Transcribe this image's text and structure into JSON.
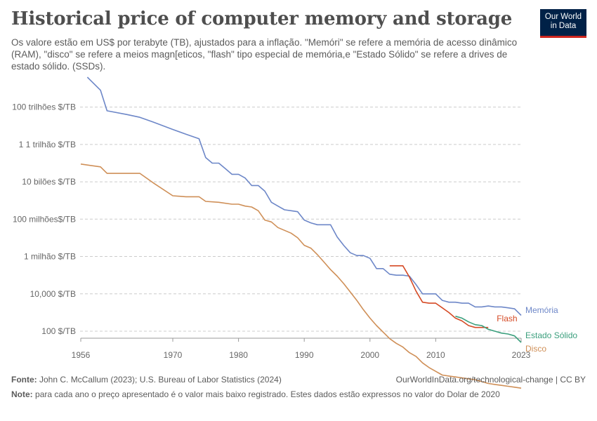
{
  "header": {
    "title": "Historical price of computer memory and storage",
    "subtitle": "Os valore estão em US$ por terabyte (TB), ajustados para a inflação. \"Memóri\" se refere a memória de acesso dinâmico (RAM), \"disco\" se refere a meios magn[eticos, \"flash\" tipo especial de memória,e \"Estado Sólido\" se refere a drives de estado sólido. (SSDs).",
    "logo_line1": "Our World",
    "logo_line2": "in Data"
  },
  "footer": {
    "source_label": "Fonte:",
    "source_text": "John C. McCallum (2023); U.S. Bureau of Labor Statistics (2024)",
    "url": "OurWorldInData.org/technological-change | CC BY",
    "note_label": "Note:",
    "note_text": "para cada ano o preço apresentado é o valor mais baixo registrado. Estes dados estão expressos no valor do Dolar de 2020"
  },
  "colors": {
    "memoria": "#6d87c8",
    "disco": "#cf8f57",
    "flash": "#d54a25",
    "estado_solido": "#3b9f7d",
    "grid": "#cccccc",
    "axis_text": "#666666"
  },
  "chart_data": {
    "type": "line",
    "title": "Historical price of computer memory and storage",
    "xlabel": "",
    "ylabel": "",
    "scale_y": "log",
    "xlim": [
      1956,
      2023
    ],
    "ylim_exponent": [
      1.3,
      15.3
    ],
    "grid": true,
    "legend": "inline-right",
    "x_ticks": [
      1956,
      1970,
      1980,
      1990,
      2000,
      2010,
      2023
    ],
    "y_ticks": [
      {
        "exp": 2,
        "label": "100 $/TB"
      },
      {
        "exp": 4,
        "label": "10,000 $/TB"
      },
      {
        "exp": 6,
        "label": "1 milhão $/TB"
      },
      {
        "exp": 8,
        "label": "100 milhões$/TB"
      },
      {
        "exp": 10,
        "label": "10 bilões $/TB"
      },
      {
        "exp": 12,
        "label": "1 1 trilhão $/TB"
      },
      {
        "exp": 14,
        "label": "100 trilhões $/TB"
      }
    ],
    "series": [
      {
        "name": "Memória",
        "key": "memoria",
        "points": [
          [
            1957,
            15.6
          ],
          [
            1959,
            14.9
          ],
          [
            1960,
            13.8
          ],
          [
            1963,
            13.6
          ],
          [
            1965,
            13.45
          ],
          [
            1967,
            13.2
          ],
          [
            1970,
            12.8
          ],
          [
            1972,
            12.55
          ],
          [
            1974,
            12.3
          ],
          [
            1975,
            11.3
          ],
          [
            1976,
            11.0
          ],
          [
            1977,
            11.0
          ],
          [
            1978,
            10.7
          ],
          [
            1979,
            10.4
          ],
          [
            1980,
            10.4
          ],
          [
            1981,
            10.2
          ],
          [
            1982,
            9.8
          ],
          [
            1983,
            9.8
          ],
          [
            1984,
            9.5
          ],
          [
            1985,
            8.9
          ],
          [
            1986,
            8.7
          ],
          [
            1987,
            8.5
          ],
          [
            1988,
            8.45
          ],
          [
            1989,
            8.4
          ],
          [
            1990,
            7.95
          ],
          [
            1991,
            7.8
          ],
          [
            1992,
            7.7
          ],
          [
            1993,
            7.7
          ],
          [
            1994,
            7.7
          ],
          [
            1995,
            7.05
          ],
          [
            1996,
            6.6
          ],
          [
            1997,
            6.2
          ],
          [
            1998,
            6.05
          ],
          [
            1999,
            6.05
          ],
          [
            2000,
            5.9
          ],
          [
            2001,
            5.35
          ],
          [
            2002,
            5.35
          ],
          [
            2003,
            5.05
          ],
          [
            2004,
            5.0
          ],
          [
            2005,
            5.0
          ],
          [
            2006,
            4.95
          ],
          [
            2007,
            4.5
          ],
          [
            2008,
            4.0
          ],
          [
            2009,
            4.0
          ],
          [
            2010,
            4.0
          ],
          [
            2011,
            3.65
          ],
          [
            2012,
            3.55
          ],
          [
            2013,
            3.55
          ],
          [
            2014,
            3.5
          ],
          [
            2015,
            3.5
          ],
          [
            2016,
            3.3
          ],
          [
            2017,
            3.3
          ],
          [
            2018,
            3.35
          ],
          [
            2019,
            3.3
          ],
          [
            2020,
            3.3
          ],
          [
            2021,
            3.25
          ],
          [
            2022,
            3.2
          ],
          [
            2023,
            2.85
          ]
        ]
      },
      {
        "name": "Disco",
        "key": "disco",
        "points": [
          [
            1956,
            10.95
          ],
          [
            1959,
            10.8
          ],
          [
            1960,
            10.45
          ],
          [
            1963,
            10.45
          ],
          [
            1965,
            10.45
          ],
          [
            1967,
            9.95
          ],
          [
            1970,
            9.25
          ],
          [
            1972,
            9.2
          ],
          [
            1974,
            9.2
          ],
          [
            1975,
            8.95
          ],
          [
            1977,
            8.9
          ],
          [
            1979,
            8.8
          ],
          [
            1980,
            8.8
          ],
          [
            1981,
            8.7
          ],
          [
            1982,
            8.65
          ],
          [
            1983,
            8.45
          ],
          [
            1984,
            7.95
          ],
          [
            1985,
            7.85
          ],
          [
            1986,
            7.55
          ],
          [
            1987,
            7.4
          ],
          [
            1988,
            7.25
          ],
          [
            1989,
            7.0
          ],
          [
            1990,
            6.6
          ],
          [
            1991,
            6.45
          ],
          [
            1992,
            6.1
          ],
          [
            1993,
            5.7
          ],
          [
            1994,
            5.3
          ],
          [
            1995,
            4.95
          ],
          [
            1996,
            4.55
          ],
          [
            1997,
            4.1
          ],
          [
            1998,
            3.65
          ],
          [
            1999,
            3.15
          ],
          [
            2000,
            2.7
          ],
          [
            2001,
            2.3
          ],
          [
            2002,
            1.95
          ],
          [
            2003,
            1.6
          ],
          [
            2004,
            1.35
          ],
          [
            2005,
            1.15
          ],
          [
            2006,
            0.85
          ],
          [
            2007,
            0.65
          ],
          [
            2008,
            0.3
          ],
          [
            2009,
            0.05
          ],
          [
            2010,
            -0.15
          ],
          [
            2011,
            -0.35
          ],
          [
            2012,
            -0.4
          ],
          [
            2013,
            -0.45
          ],
          [
            2014,
            -0.5
          ],
          [
            2015,
            -0.55
          ],
          [
            2016,
            -0.6
          ],
          [
            2017,
            -0.7
          ],
          [
            2018,
            -0.8
          ],
          [
            2019,
            -0.85
          ],
          [
            2020,
            -0.9
          ],
          [
            2021,
            -0.95
          ],
          [
            2022,
            -1.0
          ],
          [
            2023,
            -1.05
          ]
        ]
      },
      {
        "name": "Flash",
        "key": "flash",
        "points": [
          [
            2003,
            5.5
          ],
          [
            2004,
            5.5
          ],
          [
            2005,
            5.5
          ],
          [
            2006,
            4.9
          ],
          [
            2007,
            4.15
          ],
          [
            2008,
            3.55
          ],
          [
            2009,
            3.5
          ],
          [
            2010,
            3.5
          ],
          [
            2011,
            3.25
          ],
          [
            2012,
            3.0
          ],
          [
            2013,
            2.7
          ],
          [
            2014,
            2.55
          ],
          [
            2015,
            2.3
          ],
          [
            2016,
            2.2
          ],
          [
            2017,
            2.2
          ],
          [
            2018,
            2.2
          ]
        ]
      },
      {
        "name": "Estado Sólido",
        "key": "estado_solido",
        "points": [
          [
            2013,
            2.8
          ],
          [
            2014,
            2.7
          ],
          [
            2015,
            2.5
          ],
          [
            2016,
            2.35
          ],
          [
            2017,
            2.3
          ],
          [
            2018,
            2.1
          ],
          [
            2019,
            2.0
          ],
          [
            2020,
            1.9
          ],
          [
            2021,
            1.85
          ],
          [
            2022,
            1.75
          ],
          [
            2023,
            1.4
          ]
        ]
      }
    ]
  }
}
